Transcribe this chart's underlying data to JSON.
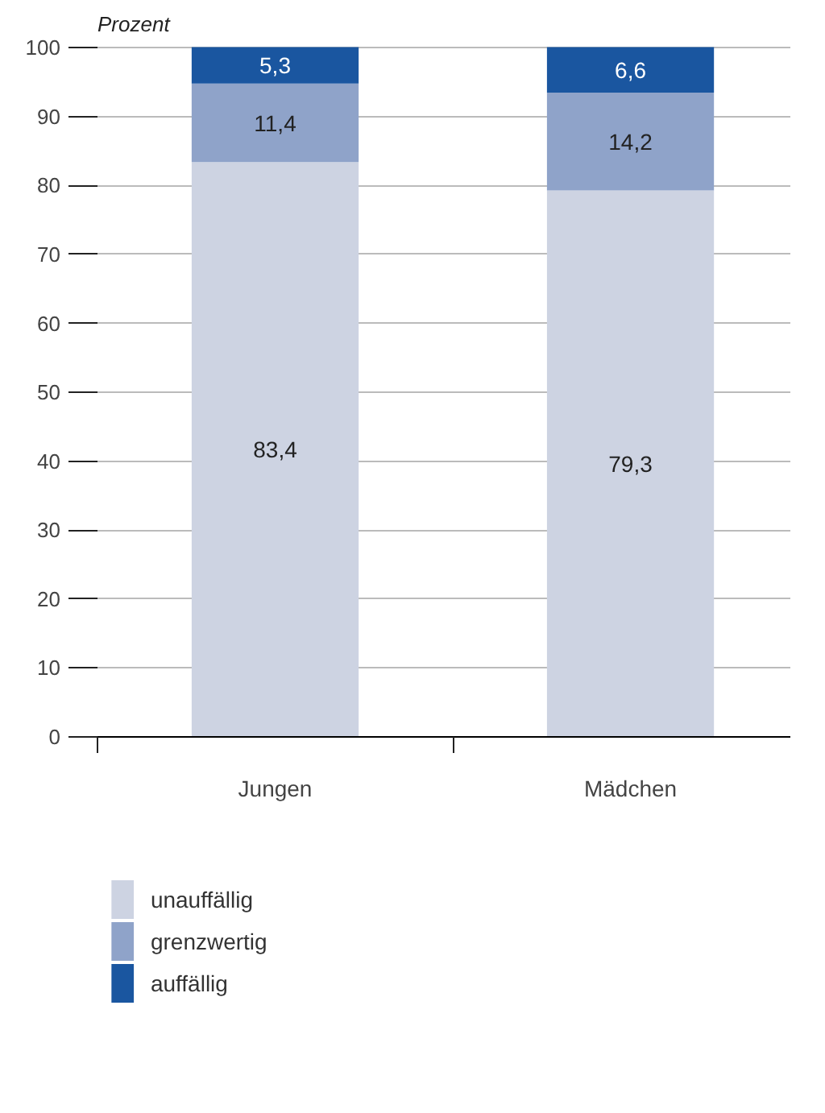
{
  "chart_data": {
    "type": "bar",
    "stacked": true,
    "ylabel": "Prozent",
    "categories": [
      "Jungen",
      "Mädchen"
    ],
    "series": [
      {
        "name": "unauffällig",
        "color": "#cdd3e2",
        "values": [
          83.4,
          79.3
        ],
        "value_labels": [
          "83,4",
          "79,3"
        ]
      },
      {
        "name": "grenzwertig",
        "color": "#8fa3c9",
        "values": [
          11.4,
          14.2
        ],
        "value_labels": [
          "11,4",
          "14,2"
        ]
      },
      {
        "name": "auffällig",
        "color": "#1a56a0",
        "values": [
          5.3,
          6.6
        ],
        "value_labels": [
          "5,3",
          "6,6"
        ]
      }
    ],
    "ylim": [
      0,
      100.5
    ],
    "yticks": [
      0,
      10,
      20,
      30,
      40,
      50,
      60,
      70,
      80,
      90,
      100
    ],
    "grid": "y",
    "legend": "bottom"
  }
}
